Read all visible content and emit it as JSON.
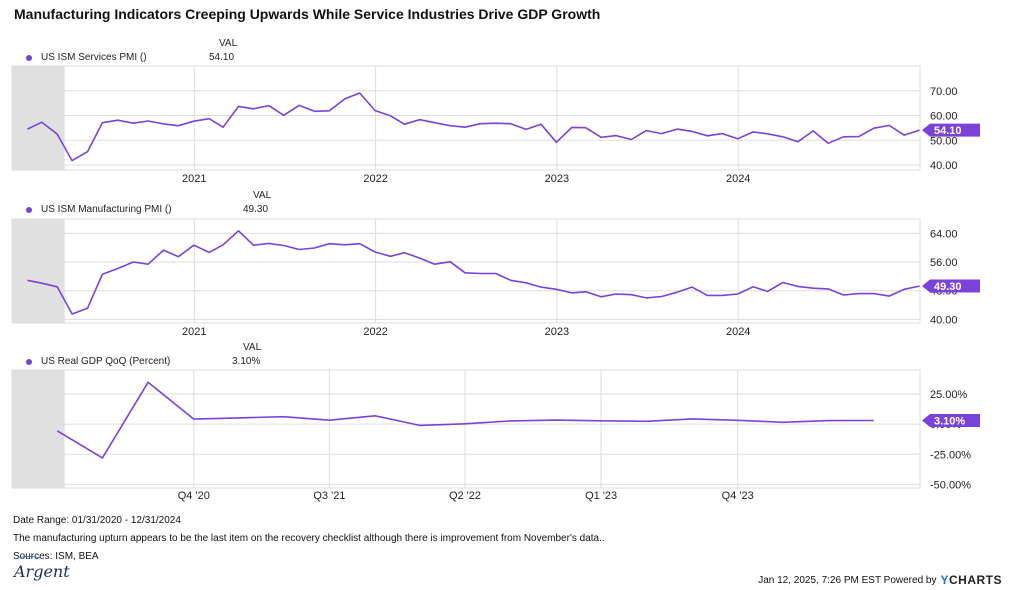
{
  "title": "Manufacturing Indicators Creeping Upwards While Service Industries Drive GDP Growth",
  "val_header": "VAL",
  "colors": {
    "line": "#7b42d9",
    "badge": "#7b42d9",
    "shade": "#e0e0e0",
    "grid": "#dddddd"
  },
  "footer": {
    "date_range": "Date Range: 01/31/2020 - 12/31/2024",
    "note": "The manufacturing upturn appears to be the last item on the recovery checklist although there is improvement from November's data..",
    "sources": "Sources: ISM, BEA",
    "timestamp": "Jan 12, 2025, 7:26 PM EST Powered by",
    "brand_y": "Y",
    "brand_rest": "CHARTS",
    "logo_text": "Argent"
  },
  "chart_data": [
    {
      "type": "line",
      "series": [
        {
          "name": "US ISM Services PMI ()",
          "last_value_label": "54.10"
        }
      ],
      "x_tick_labels": [
        "2021",
        "2022",
        "2023",
        "2024"
      ],
      "x_tick_dates": [
        "2021-01-01",
        "2022-01-01",
        "2023-01-01",
        "2024-01-01"
      ],
      "y_tick_labels": [
        "70.00",
        "60.00",
        "50.00",
        "40.00"
      ],
      "y_ticks": [
        70,
        60,
        50,
        40
      ],
      "ylim": [
        38,
        80
      ],
      "xlim": [
        "2019-12-31",
        "2025-01-01"
      ],
      "shaded_region": [
        "2019-12-31",
        "2020-04-15"
      ],
      "points": [
        [
          "2020-01-31",
          54.5
        ],
        [
          "2020-02-29",
          57.3
        ],
        [
          "2020-03-31",
          52.5
        ],
        [
          "2020-04-30",
          41.8
        ],
        [
          "2020-05-31",
          45.4
        ],
        [
          "2020-06-30",
          57.1
        ],
        [
          "2020-07-31",
          58.1
        ],
        [
          "2020-08-31",
          56.9
        ],
        [
          "2020-09-30",
          57.8
        ],
        [
          "2020-10-31",
          56.6
        ],
        [
          "2020-11-30",
          55.9
        ],
        [
          "2020-12-31",
          57.7
        ],
        [
          "2021-01-31",
          58.7
        ],
        [
          "2021-02-28",
          55.3
        ],
        [
          "2021-03-31",
          63.7
        ],
        [
          "2021-04-30",
          62.7
        ],
        [
          "2021-05-31",
          64.0
        ],
        [
          "2021-06-30",
          60.1
        ],
        [
          "2021-07-31",
          64.1
        ],
        [
          "2021-08-31",
          61.7
        ],
        [
          "2021-09-30",
          61.9
        ],
        [
          "2021-10-31",
          66.7
        ],
        [
          "2021-11-30",
          69.1
        ],
        [
          "2021-12-31",
          62.0
        ],
        [
          "2022-01-31",
          59.9
        ],
        [
          "2022-02-28",
          56.5
        ],
        [
          "2022-03-31",
          58.3
        ],
        [
          "2022-04-30",
          57.1
        ],
        [
          "2022-05-31",
          55.9
        ],
        [
          "2022-06-30",
          55.3
        ],
        [
          "2022-07-31",
          56.7
        ],
        [
          "2022-08-31",
          56.9
        ],
        [
          "2022-09-30",
          56.7
        ],
        [
          "2022-10-31",
          54.4
        ],
        [
          "2022-11-30",
          56.5
        ],
        [
          "2022-12-31",
          49.2
        ],
        [
          "2023-01-31",
          55.2
        ],
        [
          "2023-02-28",
          55.1
        ],
        [
          "2023-03-31",
          51.2
        ],
        [
          "2023-04-30",
          51.9
        ],
        [
          "2023-05-31",
          50.3
        ],
        [
          "2023-06-30",
          53.9
        ],
        [
          "2023-07-31",
          52.7
        ],
        [
          "2023-08-31",
          54.5
        ],
        [
          "2023-09-30",
          53.6
        ],
        [
          "2023-10-31",
          51.8
        ],
        [
          "2023-11-30",
          52.7
        ],
        [
          "2023-12-31",
          50.6
        ],
        [
          "2024-01-31",
          53.4
        ],
        [
          "2024-02-29",
          52.6
        ],
        [
          "2024-03-31",
          51.4
        ],
        [
          "2024-04-30",
          49.4
        ],
        [
          "2024-05-31",
          53.8
        ],
        [
          "2024-06-30",
          48.8
        ],
        [
          "2024-07-31",
          51.4
        ],
        [
          "2024-08-31",
          51.5
        ],
        [
          "2024-09-30",
          54.9
        ],
        [
          "2024-10-31",
          56.0
        ],
        [
          "2024-11-30",
          52.1
        ],
        [
          "2024-12-31",
          54.1
        ]
      ]
    },
    {
      "type": "line",
      "series": [
        {
          "name": "US ISM Manufacturing PMI ()",
          "last_value_label": "49.30"
        }
      ],
      "x_tick_labels": [
        "2021",
        "2022",
        "2023",
        "2024"
      ],
      "x_tick_dates": [
        "2021-01-01",
        "2022-01-01",
        "2023-01-01",
        "2024-01-01"
      ],
      "y_tick_labels": [
        "64.00",
        "56.00",
        "48.00",
        "40.00"
      ],
      "y_ticks": [
        64,
        56,
        48,
        40
      ],
      "ylim": [
        39,
        68
      ],
      "xlim": [
        "2019-12-31",
        "2025-01-01"
      ],
      "shaded_region": [
        "2019-12-31",
        "2020-04-15"
      ],
      "points": [
        [
          "2020-01-31",
          50.9
        ],
        [
          "2020-02-29",
          50.1
        ],
        [
          "2020-03-31",
          49.1
        ],
        [
          "2020-04-30",
          41.5
        ],
        [
          "2020-05-31",
          43.1
        ],
        [
          "2020-06-30",
          52.6
        ],
        [
          "2020-07-31",
          54.2
        ],
        [
          "2020-08-31",
          56.0
        ],
        [
          "2020-09-30",
          55.4
        ],
        [
          "2020-10-31",
          59.3
        ],
        [
          "2020-11-30",
          57.5
        ],
        [
          "2020-12-31",
          60.7
        ],
        [
          "2021-01-31",
          58.7
        ],
        [
          "2021-02-28",
          60.8
        ],
        [
          "2021-03-31",
          64.7
        ],
        [
          "2021-04-30",
          60.7
        ],
        [
          "2021-05-31",
          61.2
        ],
        [
          "2021-06-30",
          60.6
        ],
        [
          "2021-07-31",
          59.5
        ],
        [
          "2021-08-31",
          59.9
        ],
        [
          "2021-09-30",
          61.1
        ],
        [
          "2021-10-31",
          60.8
        ],
        [
          "2021-11-30",
          61.1
        ],
        [
          "2021-12-31",
          58.8
        ],
        [
          "2022-01-31",
          57.6
        ],
        [
          "2022-02-28",
          58.6
        ],
        [
          "2022-03-31",
          57.1
        ],
        [
          "2022-04-30",
          55.4
        ],
        [
          "2022-05-31",
          56.1
        ],
        [
          "2022-06-30",
          53.0
        ],
        [
          "2022-07-31",
          52.8
        ],
        [
          "2022-08-31",
          52.8
        ],
        [
          "2022-09-30",
          50.9
        ],
        [
          "2022-10-31",
          50.2
        ],
        [
          "2022-11-30",
          49.0
        ],
        [
          "2022-12-31",
          48.4
        ],
        [
          "2023-01-31",
          47.4
        ],
        [
          "2023-02-28",
          47.7
        ],
        [
          "2023-03-31",
          46.3
        ],
        [
          "2023-04-30",
          47.1
        ],
        [
          "2023-05-31",
          46.9
        ],
        [
          "2023-06-30",
          46.0
        ],
        [
          "2023-07-31",
          46.4
        ],
        [
          "2023-08-31",
          47.6
        ],
        [
          "2023-09-30",
          49.0
        ],
        [
          "2023-10-31",
          46.7
        ],
        [
          "2023-11-30",
          46.7
        ],
        [
          "2023-12-31",
          47.1
        ],
        [
          "2024-01-31",
          49.1
        ],
        [
          "2024-02-29",
          47.8
        ],
        [
          "2024-03-31",
          50.3
        ],
        [
          "2024-04-30",
          49.2
        ],
        [
          "2024-05-31",
          48.7
        ],
        [
          "2024-06-30",
          48.5
        ],
        [
          "2024-07-31",
          46.8
        ],
        [
          "2024-08-31",
          47.2
        ],
        [
          "2024-09-30",
          47.2
        ],
        [
          "2024-10-31",
          46.5
        ],
        [
          "2024-11-30",
          48.4
        ],
        [
          "2024-12-31",
          49.3
        ]
      ]
    },
    {
      "type": "line",
      "series": [
        {
          "name": "US Real GDP QoQ (Percent)",
          "last_value_label": "3.10%"
        }
      ],
      "x_tick_labels": [
        "Q4 '20",
        "Q3 '21",
        "Q2 '22",
        "Q1 '23",
        "Q4 '23"
      ],
      "x_tick_dates": [
        "2020-12-31",
        "2021-09-30",
        "2022-06-30",
        "2023-03-31",
        "2023-12-31"
      ],
      "y_tick_labels": [
        "25.00%",
        "0.00%",
        "-25.00%",
        "-50.00%"
      ],
      "y_ticks": [
        25,
        0,
        -25,
        -50
      ],
      "ylim": [
        -53,
        45
      ],
      "xlim": [
        "2019-12-31",
        "2025-01-01"
      ],
      "shaded_region": [
        "2019-12-31",
        "2020-04-15"
      ],
      "points": [
        [
          "2020-03-31",
          -5.5
        ],
        [
          "2020-06-30",
          -28.0
        ],
        [
          "2020-09-30",
          34.8
        ],
        [
          "2020-12-31",
          4.2
        ],
        [
          "2021-03-31",
          5.2
        ],
        [
          "2021-06-30",
          6.2
        ],
        [
          "2021-09-30",
          3.3
        ],
        [
          "2021-12-31",
          7.0
        ],
        [
          "2022-03-31",
          -1.0
        ],
        [
          "2022-06-30",
          0.3
        ],
        [
          "2022-09-30",
          2.7
        ],
        [
          "2022-12-31",
          3.4
        ],
        [
          "2023-03-31",
          2.8
        ],
        [
          "2023-06-30",
          2.4
        ],
        [
          "2023-09-30",
          4.4
        ],
        [
          "2023-12-31",
          3.2
        ],
        [
          "2024-03-31",
          1.6
        ],
        [
          "2024-06-30",
          3.0
        ],
        [
          "2024-09-30",
          3.1
        ]
      ]
    }
  ]
}
